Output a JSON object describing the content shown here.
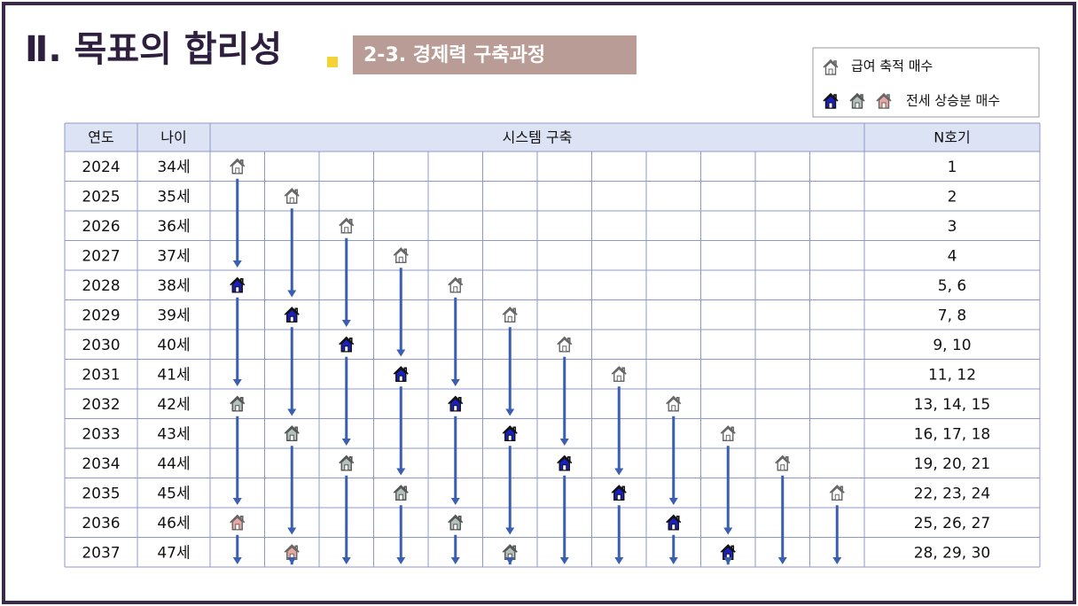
{
  "header": {
    "title": "Ⅱ. 목표의 합리성",
    "section": "2-3. 경제력 구축과정"
  },
  "legend": {
    "items": [
      "급여 축적 매수",
      "전세 상승분 매수"
    ]
  },
  "table": {
    "columns": [
      "연도",
      "나이",
      "시스템 구축",
      "N호기"
    ],
    "rows": [
      [
        "2024",
        "34세",
        "1"
      ],
      [
        "2025",
        "35세",
        "2"
      ],
      [
        "2026",
        "36세",
        "3"
      ],
      [
        "2027",
        "37세",
        "4"
      ],
      [
        "2028",
        "38세",
        "5, 6"
      ],
      [
        "2029",
        "39세",
        "7, 8"
      ],
      [
        "2030",
        "40세",
        "9, 10"
      ],
      [
        "2031",
        "41세",
        "11, 12"
      ],
      [
        "2032",
        "42세",
        "13, 14, 15"
      ],
      [
        "2033",
        "43세",
        "16, 17, 18"
      ],
      [
        "2034",
        "44세",
        "19, 20, 21"
      ],
      [
        "2035",
        "45세",
        "22, 23, 24"
      ],
      [
        "2036",
        "46세",
        "25, 26, 27"
      ],
      [
        "2037",
        "47세",
        "28, 29, 30"
      ]
    ]
  }
}
